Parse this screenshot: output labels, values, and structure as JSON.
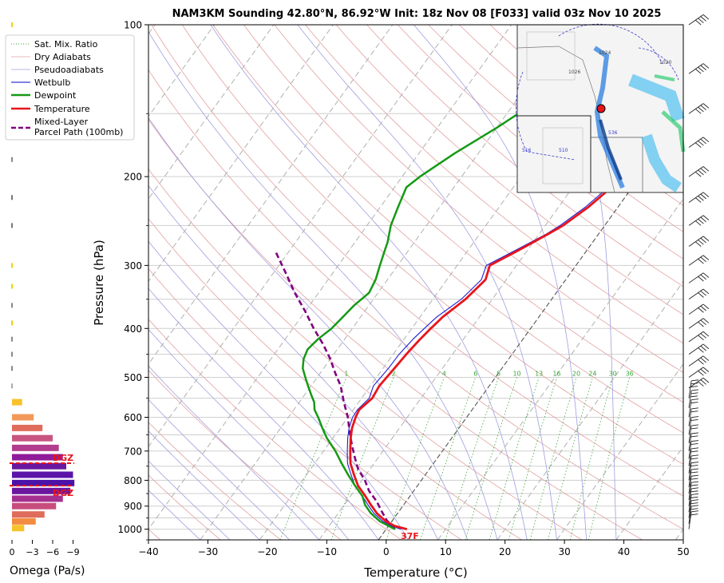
{
  "chart_data": {
    "type": "line",
    "title": "NAM3KM Sounding 42.80°N, 86.92°W Init: 18z Nov 08 [F033] valid 03z Nov 10 2025",
    "xlabel": "Temperature (°C)",
    "ylabel": "Pressure (hPa)",
    "xlim": [
      -40,
      50
    ],
    "ylim": [
      1050,
      100
    ],
    "y_scale": "log",
    "grid": true,
    "legend_placement": "upper-left",
    "x_ticks": [
      "−40",
      "−30",
      "−20",
      "−10",
      "0",
      "10",
      "20",
      "30",
      "40",
      "50"
    ],
    "y_ticks": [
      "100",
      "200",
      "300",
      "400",
      "500",
      "600",
      "700",
      "800",
      "900",
      "1000"
    ],
    "legend": [
      {
        "label": "Sat. Mix. Ratio",
        "color": "#2ca02c",
        "style": "dotted"
      },
      {
        "label": "Dry Adiabats",
        "color": "#d62728",
        "style": "thin"
      },
      {
        "label": "Pseudoadiabats",
        "color": "#1f1fbf",
        "style": "thin"
      },
      {
        "label": "Wetbulb",
        "color": "#0000cc",
        "style": "solid"
      },
      {
        "label": "Dewpoint",
        "color": "#159a15",
        "style": "thick"
      },
      {
        "label": "Temperature",
        "color": "#e8141b",
        "style": "thick"
      },
      {
        "label": "Mixed-Layer Parcel Path (100mb)",
        "color": "#800080",
        "style": "dashed"
      }
    ],
    "mixing_ratio_labels": [
      "1",
      "2",
      "4",
      "6",
      "8",
      "10",
      "13",
      "16",
      "20",
      "24",
      "30",
      "36"
    ],
    "surface_label": "37F",
    "series": [
      {
        "name": "Temperature",
        "color": "#e8141b",
        "points": [
          [
            3.5,
            1000
          ],
          [
            1,
            985
          ],
          [
            -1,
            965
          ],
          [
            -3.5,
            930
          ],
          [
            -5.5,
            895
          ],
          [
            -7.5,
            860
          ],
          [
            -10,
            820
          ],
          [
            -12,
            780
          ],
          [
            -14,
            740
          ],
          [
            -15.5,
            700
          ],
          [
            -17,
            660
          ],
          [
            -18,
            630
          ],
          [
            -18.7,
            600
          ],
          [
            -19,
            580
          ],
          [
            -18.2,
            550
          ],
          [
            -18.5,
            520
          ],
          [
            -18.3,
            500
          ],
          [
            -18.1,
            480
          ],
          [
            -17.8,
            450
          ],
          [
            -17.3,
            420
          ],
          [
            -16.8,
            400
          ],
          [
            -16.2,
            380
          ],
          [
            -14.5,
            350
          ],
          [
            -13.5,
            320
          ],
          [
            -14.5,
            300
          ],
          [
            -11.5,
            280
          ],
          [
            -8.5,
            260
          ],
          [
            -7,
            250
          ],
          [
            -5,
            230
          ],
          [
            -3.5,
            210
          ],
          [
            -3,
            200
          ],
          [
            -1.5,
            180
          ],
          [
            0.5,
            160
          ],
          [
            2.5,
            140
          ],
          [
            4.5,
            130
          ],
          [
            6.5,
            120
          ],
          [
            8,
            110
          ],
          [
            10,
            100
          ]
        ]
      },
      {
        "name": "Wetbulb",
        "color": "#1f1fd0",
        "points": [
          [
            2.5,
            1000
          ],
          [
            0.5,
            985
          ],
          [
            -1.5,
            965
          ],
          [
            -4,
            930
          ],
          [
            -6,
            895
          ],
          [
            -8,
            860
          ],
          [
            -10.5,
            820
          ],
          [
            -12.5,
            780
          ],
          [
            -14.5,
            740
          ],
          [
            -16,
            700
          ],
          [
            -17.5,
            660
          ],
          [
            -18.5,
            630
          ],
          [
            -19.2,
            600
          ],
          [
            -19.3,
            580
          ],
          [
            -18.7,
            550
          ],
          [
            -19.5,
            520
          ],
          [
            -19.3,
            500
          ],
          [
            -19.1,
            480
          ],
          [
            -19,
            450
          ],
          [
            -18.5,
            420
          ],
          [
            -17.9,
            400
          ],
          [
            -17.2,
            380
          ],
          [
            -15.2,
            350
          ],
          [
            -14.2,
            320
          ],
          [
            -15.1,
            300
          ],
          [
            -12,
            280
          ],
          [
            -8.8,
            260
          ],
          [
            -7.5,
            250
          ],
          [
            -5.5,
            230
          ],
          [
            -4,
            210
          ],
          [
            -3.5,
            200
          ],
          [
            -2,
            180
          ],
          [
            0,
            160
          ],
          [
            2,
            140
          ],
          [
            4,
            130
          ],
          [
            6,
            120
          ],
          [
            7.5,
            110
          ],
          [
            9.5,
            100
          ]
        ]
      },
      {
        "name": "Dewpoint",
        "color": "#159a15",
        "points": [
          [
            1.5,
            1000
          ],
          [
            0,
            985
          ],
          [
            -2,
            965
          ],
          [
            -4.5,
            930
          ],
          [
            -6.5,
            895
          ],
          [
            -8,
            860
          ],
          [
            -10.5,
            820
          ],
          [
            -13,
            780
          ],
          [
            -15.5,
            740
          ],
          [
            -18,
            700
          ],
          [
            -21,
            660
          ],
          [
            -23,
            630
          ],
          [
            -25,
            600
          ],
          [
            -26.5,
            580
          ],
          [
            -27.5,
            560
          ],
          [
            -29,
            540
          ],
          [
            -30.5,
            520
          ],
          [
            -32,
            500
          ],
          [
            -33.5,
            480
          ],
          [
            -34.5,
            460
          ],
          [
            -35,
            440
          ],
          [
            -34.5,
            420
          ],
          [
            -33.5,
            400
          ],
          [
            -33,
            380
          ],
          [
            -32.5,
            360
          ],
          [
            -31.5,
            340
          ],
          [
            -32,
            320
          ],
          [
            -33,
            300
          ],
          [
            -34,
            280
          ],
          [
            -34.5,
            270
          ],
          [
            -36,
            250
          ],
          [
            -37,
            230
          ],
          [
            -38,
            210
          ],
          [
            -37,
            200
          ],
          [
            -34,
            180
          ],
          [
            -30,
            160
          ],
          [
            -26,
            140
          ],
          [
            -25,
            130
          ],
          [
            -24.5,
            120
          ],
          [
            -23.5,
            110
          ],
          [
            -22.5,
            100
          ]
        ]
      },
      {
        "name": "Mixed-Layer Parcel Path (100mb)",
        "color": "#800080",
        "points": [
          [
            1.5,
            1000
          ],
          [
            -1,
            960
          ],
          [
            -3,
            920
          ],
          [
            -5,
            880
          ],
          [
            -7.5,
            840
          ],
          [
            -9.5,
            800
          ],
          [
            -12,
            760
          ],
          [
            -14,
            720
          ],
          [
            -16,
            680
          ],
          [
            -18,
            640
          ],
          [
            -20,
            600
          ],
          [
            -22.5,
            560
          ],
          [
            -25,
            520
          ],
          [
            -27.5,
            490
          ],
          [
            -30,
            460
          ],
          [
            -33,
            430
          ],
          [
            -36.5,
            400
          ],
          [
            -40,
            370
          ],
          [
            -44,
            340
          ],
          [
            -48,
            310
          ],
          [
            -52.5,
            280
          ]
        ]
      }
    ],
    "wind_barbs_visible": true,
    "omega_panel": {
      "xlabel": "Omega (Pa/s)",
      "x_ticks": [
        "0",
        "−3",
        "−6",
        "−9"
      ],
      "dgz_label": "DGZ",
      "dgz_bounds_hpa": [
        740,
        820
      ]
    },
    "inset_map_labels": [
      "1024",
      "1026",
      "1020",
      "516",
      "510",
      "536"
    ]
  }
}
